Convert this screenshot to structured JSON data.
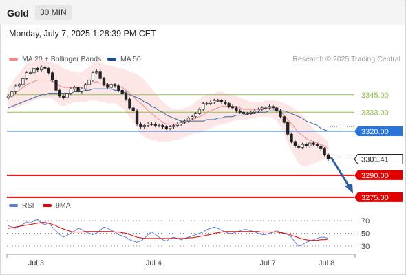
{
  "header": {
    "instrument": "Gold",
    "timeframe": "30 MIN"
  },
  "timestamp": "Monday, July 7, 2025 1:28:39 PM CET",
  "legend": {
    "ma20_label": "MA 20 + Bollinger Bands",
    "ma50_label": "MA 50",
    "ma20_color": "#f08a8a",
    "ma50_color": "#1f4e8c"
  },
  "credit": "Research © 2025 Trading Central",
  "rsi_legend": {
    "rsi_label": "RSI",
    "ma_label": "9MA",
    "rsi_color": "#5b7fd6",
    "ma_color": "#e00000"
  },
  "chart_data": [
    {
      "type": "line",
      "title": "Gold",
      "subtitle": "30 MIN",
      "x_ticks": [
        "Jul 3",
        "Jul 4",
        "Jul 7",
        "Jul 8"
      ],
      "ylim": [
        3262,
        3378
      ],
      "last_price": "3301.41",
      "levels": [
        {
          "label": "3345.00",
          "value": 3345.0,
          "style": "resistance",
          "color": "#8fc14a"
        },
        {
          "label": "3333.00",
          "value": 3333.0,
          "style": "resistance",
          "color": "#8fc14a"
        },
        {
          "label": "3320.00",
          "value": 3320.0,
          "style": "pivot",
          "color": "#2a74d9"
        },
        {
          "label": "3290.00",
          "value": 3290.0,
          "style": "support",
          "color": "#e00000"
        },
        {
          "label": "3275.00",
          "value": 3275.0,
          "style": "support",
          "color": "#e00000"
        }
      ],
      "projection_arrow": {
        "from": 3300,
        "to": 3278,
        "color": "#2f5f9e"
      },
      "series": [
        {
          "name": "Price",
          "color": "#222222",
          "values": [
            3344,
            3347,
            3351,
            3352,
            3356,
            3360,
            3360,
            3363,
            3362,
            3364,
            3363,
            3360,
            3355,
            3348,
            3344,
            3343,
            3346,
            3349,
            3350,
            3347,
            3349,
            3352,
            3355,
            3360,
            3361,
            3356,
            3352,
            3350,
            3352,
            3351,
            3348,
            3346,
            3342,
            3336,
            3334,
            3325,
            3323,
            3324,
            3325,
            3325,
            3324,
            3324,
            3323,
            3322,
            3323,
            3324,
            3325,
            3326,
            3327,
            3329,
            3330,
            3332,
            3335,
            3339,
            3339,
            3340,
            3341,
            3341,
            3340,
            3339,
            3337,
            3336,
            3334,
            3333,
            3332,
            3332,
            3333,
            3334,
            3335,
            3336,
            3336,
            3337,
            3336,
            3334,
            3330,
            3326,
            3318,
            3313,
            3310,
            3309,
            3311,
            3310,
            3312,
            3311,
            3310,
            3308,
            3304,
            3301
          ]
        },
        {
          "name": "MA 20",
          "color": "#f08a8a",
          "values": [
            3343,
            3344,
            3346,
            3348,
            3350,
            3352,
            3353,
            3354,
            3355,
            3355,
            3355,
            3355,
            3354,
            3353,
            3351,
            3350,
            3350,
            3350,
            3350,
            3350,
            3350,
            3351,
            3352,
            3353,
            3354,
            3353,
            3353,
            3352,
            3352,
            3352,
            3351,
            3350,
            3348,
            3346,
            3344,
            3341,
            3339,
            3337,
            3334,
            3332,
            3330,
            3328,
            3326,
            3325,
            3325,
            3325,
            3325,
            3325,
            3326,
            3327,
            3328,
            3329,
            3330,
            3331,
            3333,
            3334,
            3335,
            3336,
            3337,
            3337,
            3337,
            3337,
            3337,
            3336,
            3335,
            3335,
            3335,
            3335,
            3335,
            3335,
            3336,
            3336,
            3335,
            3334,
            3333,
            3331,
            3328,
            3325,
            3322,
            3319,
            3317,
            3315,
            3314,
            3313,
            3312,
            3311,
            3310,
            3308
          ]
        },
        {
          "name": "BB Upper",
          "color": "#fde3e3",
          "values": [
            3350,
            3353,
            3357,
            3360,
            3363,
            3366,
            3367,
            3368,
            3369,
            3369,
            3368,
            3368,
            3367,
            3366,
            3365,
            3363,
            3362,
            3361,
            3361,
            3360,
            3361,
            3362,
            3364,
            3366,
            3368,
            3367,
            3366,
            3365,
            3365,
            3364,
            3363,
            3363,
            3362,
            3361,
            3360,
            3359,
            3357,
            3355,
            3352,
            3349,
            3346,
            3343,
            3340,
            3338,
            3336,
            3335,
            3335,
            3335,
            3336,
            3337,
            3338,
            3340,
            3342,
            3344,
            3345,
            3346,
            3346,
            3347,
            3347,
            3346,
            3346,
            3345,
            3344,
            3343,
            3342,
            3341,
            3340,
            3340,
            3340,
            3340,
            3341,
            3341,
            3341,
            3341,
            3340,
            3339,
            3338,
            3337,
            3335,
            3333,
            3331,
            3328,
            3325,
            3322,
            3319,
            3317,
            3315,
            3313
          ]
        },
        {
          "name": "BB Lower",
          "color": "#fde3e3",
          "values": [
            3336,
            3336,
            3336,
            3337,
            3338,
            3339,
            3340,
            3341,
            3342,
            3343,
            3343,
            3343,
            3342,
            3340,
            3338,
            3337,
            3338,
            3339,
            3340,
            3340,
            3340,
            3340,
            3341,
            3341,
            3341,
            3340,
            3340,
            3339,
            3339,
            3339,
            3338,
            3336,
            3333,
            3330,
            3327,
            3322,
            3318,
            3316,
            3315,
            3314,
            3314,
            3313,
            3313,
            3313,
            3313,
            3314,
            3314,
            3315,
            3316,
            3317,
            3318,
            3319,
            3319,
            3320,
            3321,
            3322,
            3323,
            3324,
            3325,
            3325,
            3326,
            3327,
            3328,
            3328,
            3328,
            3328,
            3329,
            3329,
            3330,
            3330,
            3330,
            3330,
            3329,
            3327,
            3323,
            3318,
            3312,
            3307,
            3302,
            3298,
            3296,
            3296,
            3297,
            3298,
            3299,
            3300,
            3301,
            3300
          ]
        },
        {
          "name": "MA 50",
          "color": "#3a5f9a",
          "values": [
            3336,
            3337,
            3338,
            3339,
            3340,
            3341,
            3342,
            3343,
            3344,
            3345,
            3345,
            3346,
            3346,
            3346,
            3346,
            3346,
            3346,
            3346,
            3347,
            3347,
            3347,
            3348,
            3348,
            3349,
            3349,
            3349,
            3349,
            3349,
            3349,
            3348,
            3348,
            3347,
            3346,
            3345,
            3344,
            3343,
            3342,
            3340,
            3339,
            3337,
            3336,
            3334,
            3333,
            3331,
            3330,
            3329,
            3328,
            3327,
            3327,
            3327,
            3327,
            3327,
            3327,
            3327,
            3328,
            3328,
            3328,
            3329,
            3329,
            3330,
            3330,
            3330,
            3331,
            3331,
            3331,
            3332,
            3332,
            3332,
            3333,
            3333,
            3333,
            3334,
            3334,
            3334,
            3334,
            3334,
            3333,
            3332,
            3331,
            3330,
            3329,
            3327,
            3326,
            3325,
            3324,
            3322,
            3321,
            3320
          ]
        }
      ]
    },
    {
      "type": "line",
      "title": "RSI",
      "y_ticks": [
        70,
        50,
        30
      ],
      "ylim": [
        15,
        85
      ],
      "series": [
        {
          "name": "RSI",
          "color": "#5b7fd6",
          "values": [
            62,
            60,
            58,
            61,
            64,
            68,
            66,
            70,
            72,
            66,
            64,
            66,
            60,
            54,
            48,
            44,
            47,
            50,
            54,
            58,
            56,
            52,
            50,
            48,
            50,
            55,
            60,
            58,
            55,
            52,
            48,
            46,
            44,
            40,
            38,
            36,
            38,
            42,
            48,
            52,
            48,
            44,
            40,
            38,
            42,
            44,
            42,
            40,
            42,
            44,
            46,
            48,
            50,
            52,
            56,
            58,
            60,
            58,
            55,
            52,
            50,
            50,
            52,
            54,
            56,
            56,
            54,
            52,
            50,
            48,
            48,
            50,
            52,
            54,
            52,
            50,
            48,
            44,
            36,
            30,
            32,
            36,
            38,
            40,
            42,
            44,
            44,
            42
          ]
        },
        {
          "name": "9MA",
          "color": "#e00000",
          "values": [
            58,
            59,
            60,
            61,
            62,
            63,
            64,
            65,
            66,
            67,
            67,
            66,
            64,
            62,
            59,
            57,
            55,
            53,
            52,
            52,
            52,
            53,
            53,
            53,
            53,
            53,
            53,
            53,
            53,
            52,
            52,
            51,
            50,
            48,
            46,
            44,
            43,
            42,
            42,
            42,
            42,
            42,
            42,
            42,
            42,
            42,
            42,
            42,
            42,
            43,
            43,
            44,
            45,
            46,
            47,
            48,
            50,
            51,
            52,
            53,
            53,
            53,
            53,
            53,
            53,
            53,
            53,
            53,
            53,
            52,
            52,
            52,
            52,
            52,
            51,
            50,
            49,
            47,
            45,
            43,
            41,
            40,
            39,
            39,
            39,
            40,
            40,
            41
          ]
        }
      ]
    }
  ]
}
